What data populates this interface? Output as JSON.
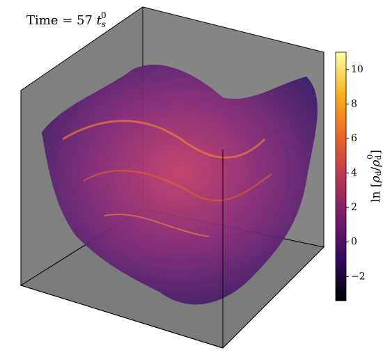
{
  "chart_data": {
    "type": "volume",
    "title": [
      "Time = 57 ",
      "t",
      "s",
      "0"
    ],
    "colorbar": {
      "label": [
        "ln [",
        "ρ",
        "d",
        "/",
        "ρ",
        "d",
        "0",
        "]"
      ],
      "lim": [
        -3.4,
        11.0
      ],
      "ticks": [
        {
          "value": -2,
          "label": "−2"
        },
        0,
        2,
        4,
        6,
        8,
        10
      ],
      "colors": [
        "#000004",
        "#320a5e",
        "#781b6c",
        "#bb3754",
        "#ec6824",
        "#fbb41a",
        "#fcffa4"
      ]
    }
  }
}
